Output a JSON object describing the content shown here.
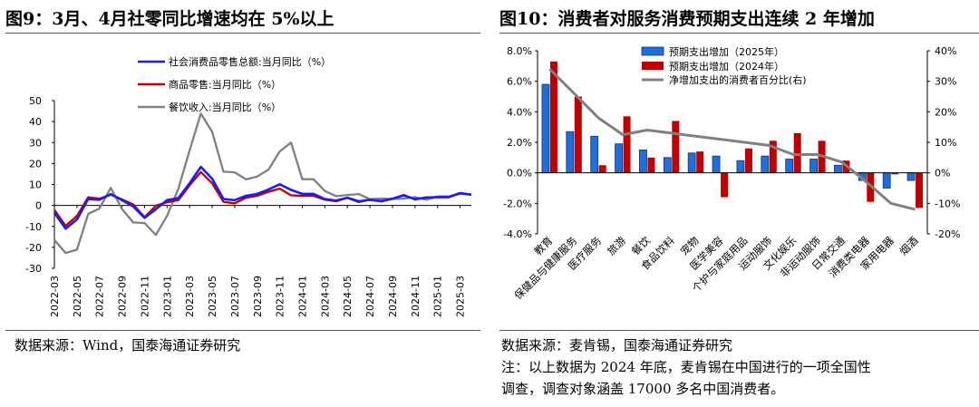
{
  "left": {
    "title": "图9：3月、4月社零同比增速均在 5%以上",
    "source": "数据来源：Wind，国泰海通证券研究",
    "chart_data": {
      "type": "line",
      "title": "图9：3月、4月社零同比增速均在 5%以上",
      "x": [
        "2022-03",
        "2022-04",
        "2022-05",
        "2022-06",
        "2022-07",
        "2022-08",
        "2022-09",
        "2022-10",
        "2022-11",
        "2022-12",
        "2023-01",
        "2023-02",
        "2023-03",
        "2023-04",
        "2023-05",
        "2023-06",
        "2023-07",
        "2023-08",
        "2023-09",
        "2023-10",
        "2023-11",
        "2023-12",
        "2024-01",
        "2024-02",
        "2024-03",
        "2024-04",
        "2024-05",
        "2024-06",
        "2024-07",
        "2024-08",
        "2024-09",
        "2024-10",
        "2024-11",
        "2024-12",
        "2025-01",
        "2025-02",
        "2025-03",
        "2025-04"
      ],
      "xticks": [
        "2022-03",
        "2022-05",
        "2022-07",
        "2022-09",
        "2022-11",
        "2023-01",
        "2023-03",
        "2023-05",
        "2023-07",
        "2023-09",
        "2023-11",
        "2024-01",
        "2024-03",
        "2024-05",
        "2024-07",
        "2024-09",
        "2024-11",
        "2025-01",
        "2025-03"
      ],
      "ylim": [
        -30,
        50
      ],
      "yticks": [
        -30,
        -20,
        -10,
        0,
        10,
        20,
        30,
        40,
        50
      ],
      "series": [
        {
          "name": "社会消费品零售总额:当月同比（%）",
          "color": "#1a1aff",
          "values": [
            -3.5,
            -11.1,
            -6.7,
            3.1,
            2.7,
            5.4,
            2.5,
            -0.5,
            -5.9,
            -1.8,
            2.5,
            3.5,
            10.6,
            18.4,
            12.7,
            3.1,
            2.5,
            4.6,
            5.5,
            7.6,
            10.1,
            7.4,
            5.5,
            5.5,
            3.1,
            2.3,
            3.7,
            2.0,
            2.7,
            2.1,
            3.2,
            4.8,
            3.0,
            3.7,
            4.0,
            4.0,
            5.9,
            5.1
          ]
        },
        {
          "name": "商品零售:当月同比（%）",
          "color": "#c00000",
          "values": [
            -2.1,
            -9.7,
            -5.0,
            3.9,
            3.2,
            5.1,
            2.9,
            0.5,
            -5.6,
            -0.1,
            1.5,
            2.5,
            9.6,
            15.9,
            10.5,
            1.7,
            1.0,
            3.7,
            4.6,
            6.5,
            8.0,
            4.8,
            4.6,
            4.6,
            2.7,
            2.0,
            3.6,
            1.6,
            2.7,
            1.9,
            3.2,
            5.0,
            2.8,
            3.9,
            3.9,
            3.9,
            5.8,
            5.1
          ]
        },
        {
          "name": "餐饮收入:当月同比（%）",
          "color": "#808080",
          "values": [
            -16.4,
            -22.7,
            -21.1,
            -4.0,
            -1.5,
            8.4,
            -1.7,
            -8.1,
            -8.4,
            -14.1,
            -5.0,
            8.0,
            26.3,
            43.8,
            35.1,
            16.1,
            15.8,
            12.4,
            13.8,
            17.1,
            25.8,
            30.0,
            12.5,
            12.5,
            6.9,
            4.4,
            5.0,
            5.4,
            3.0,
            3.3,
            3.1,
            3.2,
            4.0,
            2.7,
            4.3,
            4.3,
            5.6,
            5.2
          ]
        }
      ]
    }
  },
  "right": {
    "title": "图10：消费者对服务消费预期支出连续 2 年增加",
    "source": "数据来源：麦肯锡，国泰海通证券研究",
    "note_line1": "注：以上数据为 2024 年底，麦肯锡在中国进行的一项全国性",
    "note_line2": "调查，调查对象涵盖 17000 多名中国消费者。",
    "chart_data": {
      "type": "bar",
      "title": "图10：消费者对服务消费预期支出连续 2 年增加",
      "categories": [
        "教育",
        "保健品与健康服务",
        "医疗服务",
        "旅游",
        "餐饮",
        "食品饮料",
        "宠物",
        "医学美容",
        "个护与家庭用品",
        "运动服饰",
        "文化娱乐",
        "非运动服饰",
        "日常交通",
        "消费类电器",
        "家用电器",
        "烟酒"
      ],
      "ylim": [
        -4,
        8
      ],
      "yticks": [
        "-4.0%",
        "-2.0%",
        "0.0%",
        "2.0%",
        "4.0%",
        "6.0%",
        "8.0%"
      ],
      "ylim_right": [
        -20,
        40
      ],
      "yticks_right": [
        "-20%",
        "-10%",
        "0%",
        "10%",
        "20%",
        "30%",
        "40%"
      ],
      "series": [
        {
          "name": "预期支出增加（2025年）",
          "color": "#1f6fd8",
          "values": [
            5.8,
            2.7,
            2.4,
            1.9,
            1.5,
            1.0,
            1.3,
            1.1,
            0.8,
            1.1,
            0.9,
            0.9,
            0.5,
            -0.5,
            -1.0,
            -0.5
          ]
        },
        {
          "name": "预期支出增加（2024年）",
          "color": "#c00000",
          "values": [
            7.3,
            5.0,
            0.5,
            3.7,
            1.0,
            3.4,
            1.4,
            -1.6,
            1.6,
            2.1,
            2.6,
            2.1,
            0.8,
            -1.9,
            -0.1,
            -2.3
          ]
        },
        {
          "name": "净增加支出的消费者百分比(右)",
          "color": "#808080",
          "axis": "right",
          "values": [
            34,
            26,
            18,
            12.5,
            14,
            13,
            12,
            11,
            10,
            9,
            6,
            6,
            3.5,
            -3,
            -10,
            -12
          ]
        }
      ]
    }
  }
}
